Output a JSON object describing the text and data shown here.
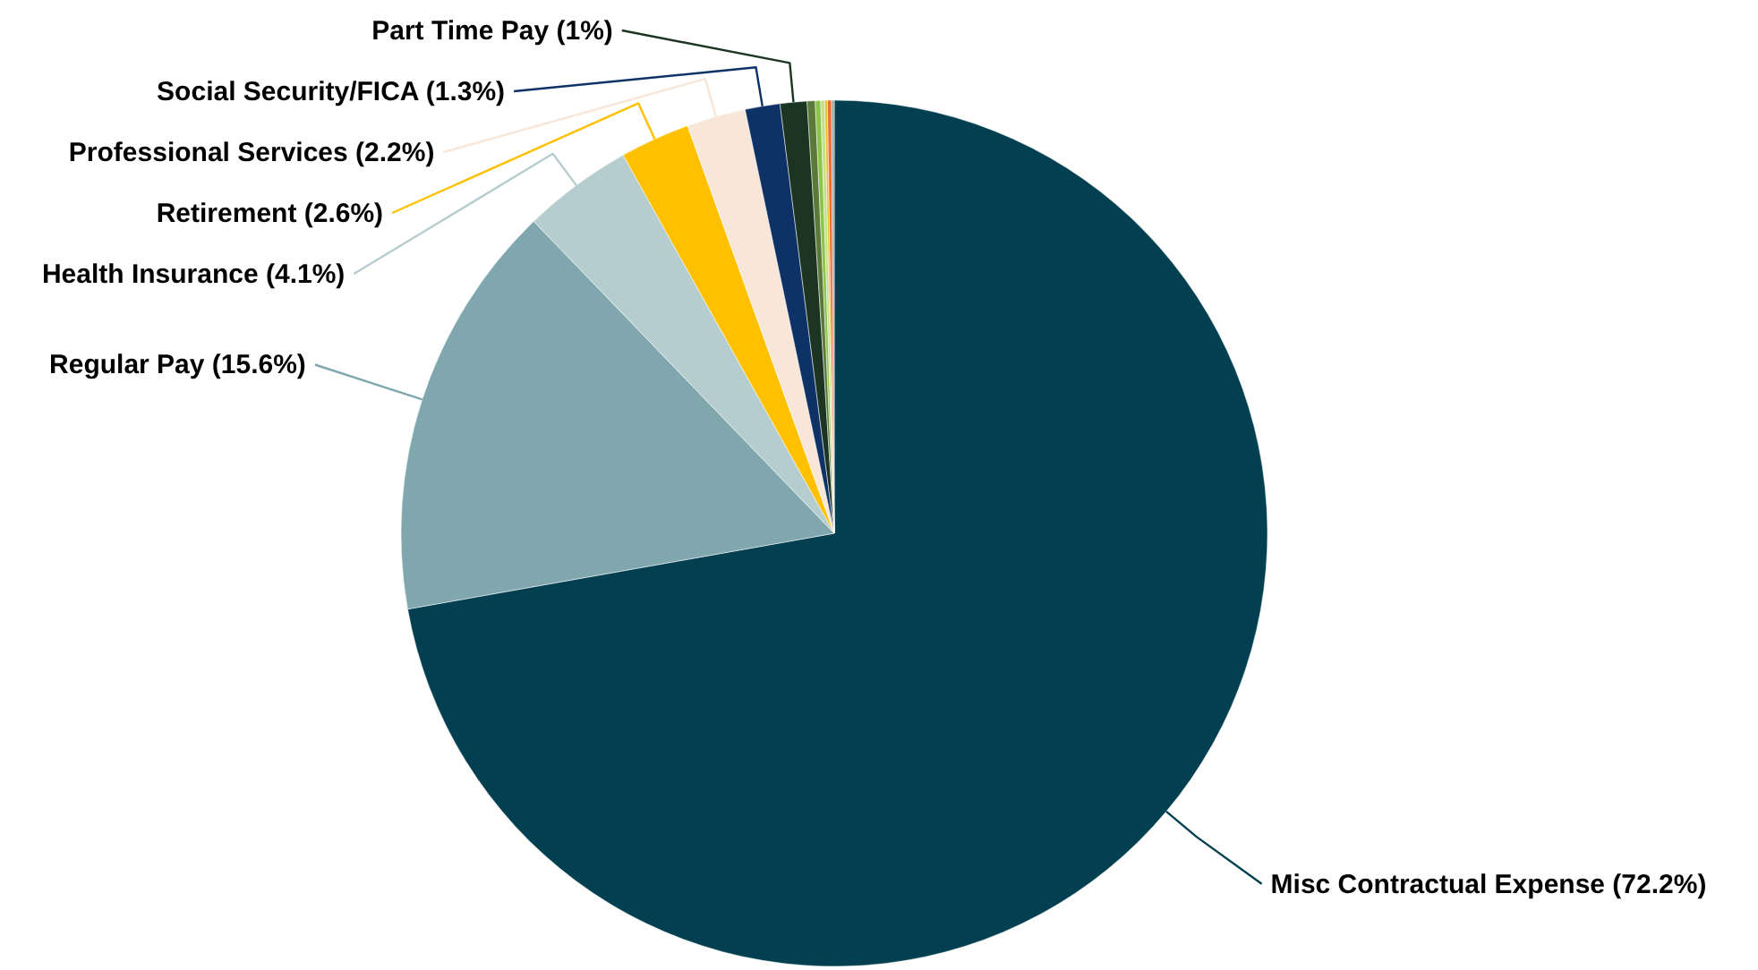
{
  "chart_data": {
    "type": "pie",
    "categories": [
      "Misc Contractual Expense",
      "Regular Pay",
      "Health Insurance",
      "Retirement",
      "Professional Services",
      "Social Security/FICA",
      "Part Time Pay",
      null,
      null,
      null,
      null,
      null,
      null
    ],
    "values": [
      72.2,
      15.6,
      4.1,
      2.6,
      2.2,
      1.3,
      1,
      0.3,
      0.2,
      0.15,
      0.1,
      0.15,
      0.1
    ],
    "value_labels": [
      "(72.2%)",
      "(15.6%)",
      "(4.1%)",
      "(2.6%)",
      "(2.2%)",
      "(1.3%)",
      "(1%)",
      null,
      null,
      null,
      null,
      null,
      null
    ],
    "colors": [
      "#023f50",
      "#7fa7ad",
      "#b6cdd0",
      "#ffc000",
      "#f8e6d8",
      "#0f3266",
      "#1c3523",
      "#5b7a3a",
      "#8cc34a",
      "#c6e08a",
      "#e8c22a",
      "#f26a30",
      "#a6a6a6"
    ]
  }
}
